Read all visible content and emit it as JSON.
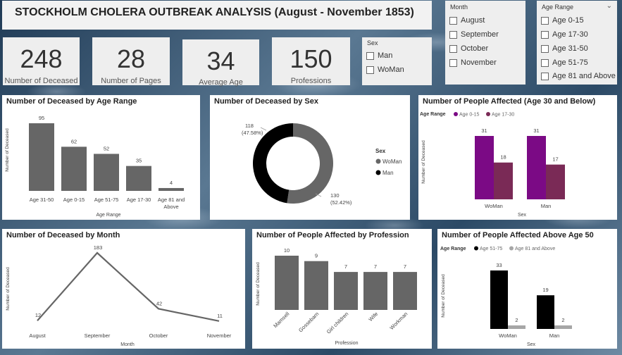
{
  "title": "STOCKHOLM CHOLERA OUTBREAK ANALYSIS (August - November 1853)",
  "kpis": [
    {
      "value": "248",
      "label": "Number of Deceased"
    },
    {
      "value": "28",
      "label": "Number of Pages"
    },
    {
      "value": "34",
      "label": "Average Age"
    },
    {
      "value": "150",
      "label": "Professions"
    }
  ],
  "slicers": {
    "sex": {
      "title": "Sex",
      "items": [
        "Man",
        "WoMan"
      ]
    },
    "month": {
      "title": "Month",
      "items": [
        "August",
        "September",
        "October",
        "November"
      ]
    },
    "age": {
      "title": "Age Range",
      "items": [
        "Age 0-15",
        "Age 17-30",
        "Age 31-50",
        "Age 51-75",
        "Age 81 and Above"
      ]
    }
  },
  "colors": {
    "gray": "#666666",
    "black": "#000000",
    "purple_dark": "#7b0a85",
    "purple_mid": "#7a2a56",
    "light_gray": "#a6a6a6"
  },
  "chart_data": [
    {
      "type": "bar",
      "title": "Number of Deceased by Age Range",
      "categories": [
        "Age 31-50",
        "Age 0-15",
        "Age 51-75",
        "Age 17-30",
        "Age 81 and Above"
      ],
      "values": [
        95,
        62,
        52,
        35,
        4
      ],
      "xlabel": "Age Range",
      "ylabel": "Number of Deceased"
    },
    {
      "type": "pie",
      "title": "Number of Deceased by Sex",
      "legend_title": "Sex",
      "slices": [
        {
          "name": "WoMan",
          "value": 130,
          "percent": "(52.42%)"
        },
        {
          "name": "Man",
          "value": 118,
          "percent": "(47.58%)"
        }
      ]
    },
    {
      "type": "bar",
      "title": "Number of People Affected (Age 30 and Below)",
      "legend_title": "Age Range",
      "categories": [
        "WoMan",
        "Man"
      ],
      "series": [
        {
          "name": "Age 0-15",
          "values": [
            31,
            31
          ]
        },
        {
          "name": "Age 17-30",
          "values": [
            18,
            17
          ]
        }
      ],
      "xlabel": "Sex",
      "ylabel": "Number of Deceased"
    },
    {
      "type": "line",
      "title": "Number of Deceased by Month",
      "categories": [
        "August",
        "September",
        "October",
        "November"
      ],
      "values": [
        12,
        183,
        42,
        11
      ],
      "xlabel": "Month",
      "ylabel": "Number of Deceased"
    },
    {
      "type": "bar",
      "title": "Number of People Affected by Profession",
      "categories": [
        "Mamsell",
        "Gossebarn",
        "Girl children",
        "Wife",
        "Workman"
      ],
      "values": [
        10,
        9,
        7,
        7,
        7
      ],
      "xlabel": "Profession",
      "ylabel": "Number of Deceased"
    },
    {
      "type": "bar",
      "title": "Number of People Affected Above Age 50",
      "legend_title": "Age Range",
      "categories": [
        "WoMan",
        "Man"
      ],
      "series": [
        {
          "name": "Age 51-75",
          "values": [
            33,
            19
          ]
        },
        {
          "name": "Age 81 and Above",
          "values": [
            2,
            2
          ]
        }
      ],
      "xlabel": "Sex",
      "ylabel": "Number of Deceased"
    }
  ]
}
